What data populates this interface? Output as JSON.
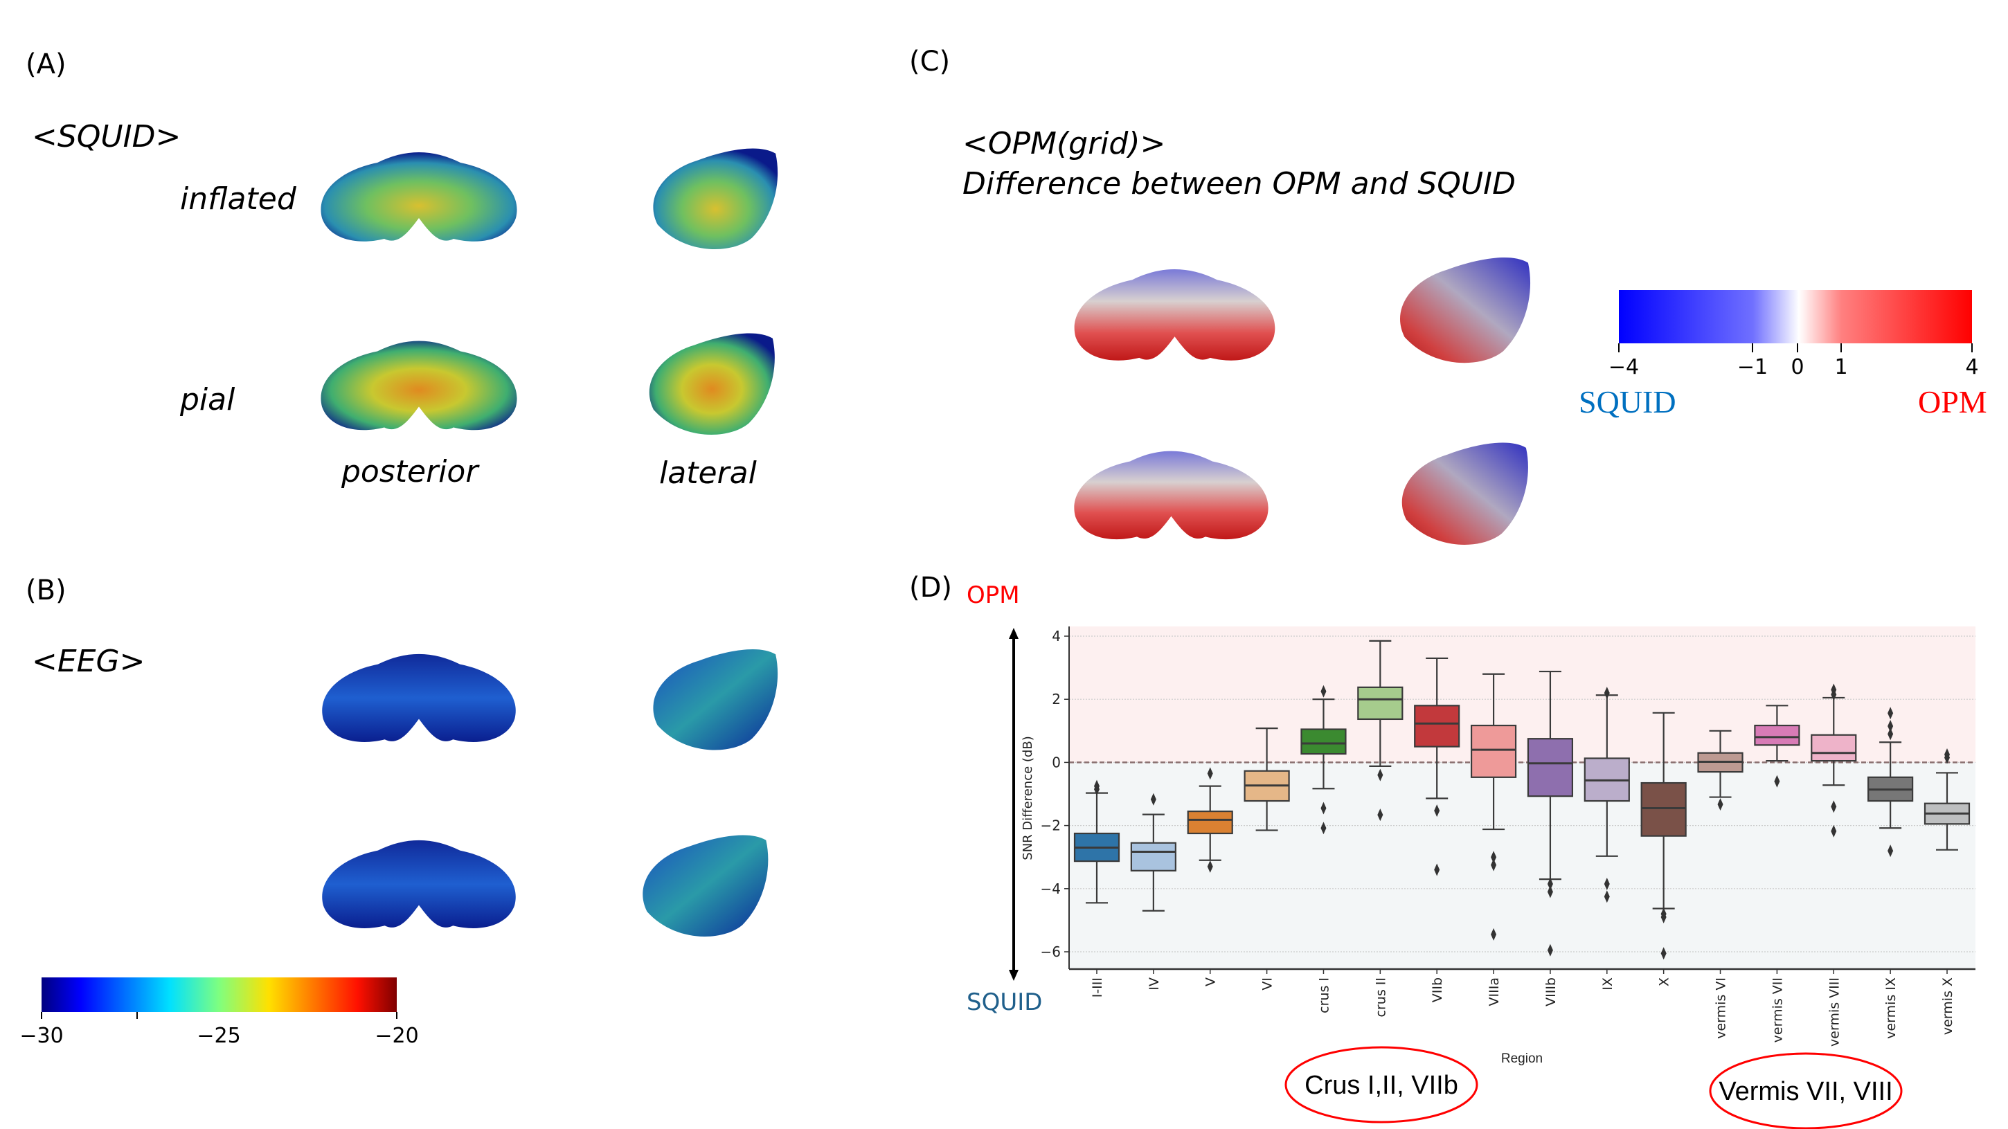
{
  "panels": {
    "a": "(A)",
    "b": "(B)",
    "c": "(C)",
    "d": "(D)"
  },
  "panel_a": {
    "title": "<SQUID>",
    "row1": "inflated",
    "row2": "pial",
    "col1": "posterior",
    "col2": "lateral"
  },
  "panel_b": {
    "title": "<EEG>"
  },
  "jet_colorbar": {
    "ticks": [
      "−30",
      "−25",
      "−20"
    ],
    "tick_values": [
      -30,
      -25,
      -20
    ]
  },
  "panel_c": {
    "title": "<OPM(grid)>",
    "subtitle": "Difference between OPM and SQUID"
  },
  "diff_colorbar": {
    "ticks": [
      "−4",
      "−1",
      "0",
      "1",
      "4"
    ],
    "left_label": "SQUID",
    "right_label": "OPM",
    "left_color": "#0070c0",
    "right_color": "#ff0000"
  },
  "panel_d": {
    "top_label": "OPM",
    "bottom_label": "SQUID",
    "top_color": "#ff0000",
    "bottom_color": "#1f5f8b"
  },
  "annotations": {
    "ellipse1": "Crus I,II, VIIb",
    "ellipse2": "Vermis VII, VIII"
  },
  "chart_data": {
    "type": "box",
    "xlabel": "Region",
    "ylabel": "SNR Difference (dB)",
    "ylim": [
      -6.6,
      4.3
    ],
    "yticks": [
      4,
      2,
      0,
      -2,
      -4,
      -6
    ],
    "ytick_labels": [
      "4",
      "2",
      "0",
      "−2",
      "−4",
      "−6"
    ],
    "reference_line": 0,
    "background": {
      "positive": "#fdf0f0",
      "negative": "#f3f6f7"
    },
    "categories": [
      "I-III",
      "IV",
      "V",
      "VI",
      "crus I",
      "crus II",
      "VIIb",
      "VIIIa",
      "VIIIb",
      "IX",
      "X",
      "vermis VI",
      "vermis VII",
      "vermis VIII",
      "vermis IX",
      "vermis X"
    ],
    "colors": [
      "#2e74a8",
      "#a9c3df",
      "#da8132",
      "#e5b788",
      "#3b8a30",
      "#a6cc8d",
      "#c2393c",
      "#ee9a99",
      "#8e6fae",
      "#bbaecb",
      "#7a5148",
      "#bd9a92",
      "#d87bb6",
      "#eeb3c9",
      "#777777",
      "#bdbfc0"
    ],
    "boxes": [
      {
        "whislo": -4.45,
        "q1": -3.13,
        "med": -2.7,
        "q3": -2.25,
        "whishi": -0.97,
        "fliers": [
          -0.75,
          -0.85
        ]
      },
      {
        "whislo": -4.7,
        "q1": -3.43,
        "med": -2.83,
        "q3": -2.55,
        "whishi": -1.65,
        "fliers": [
          -1.17
        ]
      },
      {
        "whislo": -3.1,
        "q1": -2.25,
        "med": -1.82,
        "q3": -1.55,
        "whishi": -0.75,
        "fliers": [
          -0.35,
          -3.3
        ]
      },
      {
        "whislo": -2.15,
        "q1": -1.22,
        "med": -0.73,
        "q3": -0.27,
        "whishi": 1.08,
        "fliers": []
      },
      {
        "whislo": -0.83,
        "q1": 0.27,
        "med": 0.6,
        "q3": 1.05,
        "whishi": 2.0,
        "fliers": [
          2.25,
          -1.45,
          -2.08
        ]
      },
      {
        "whislo": -0.12,
        "q1": 1.37,
        "med": 2.0,
        "q3": 2.38,
        "whishi": 3.85,
        "fliers": [
          -0.4,
          -1.66
        ]
      },
      {
        "whislo": -1.14,
        "q1": 0.5,
        "med": 1.23,
        "q3": 1.8,
        "whishi": 3.3,
        "fliers": [
          -1.53,
          -3.4
        ]
      },
      {
        "whislo": -2.12,
        "q1": -0.47,
        "med": 0.4,
        "q3": 1.17,
        "whishi": 2.8,
        "fliers": [
          -3.0,
          -3.25,
          -5.45
        ]
      },
      {
        "whislo": -3.7,
        "q1": -1.07,
        "med": -0.03,
        "q3": 0.75,
        "whishi": 2.88,
        "fliers": [
          -3.85,
          -4.1,
          -5.95
        ]
      },
      {
        "whislo": -2.97,
        "q1": -1.22,
        "med": -0.57,
        "q3": 0.13,
        "whishi": 2.13,
        "fliers": [
          2.2,
          -3.85,
          -4.25
        ]
      },
      {
        "whislo": -4.63,
        "q1": -2.33,
        "med": -1.45,
        "q3": -0.65,
        "whishi": 1.57,
        "fliers": [
          -4.8,
          -4.9,
          -6.05
        ]
      },
      {
        "whislo": -1.1,
        "q1": -0.3,
        "med": 0.02,
        "q3": 0.3,
        "whishi": 1.0,
        "fliers": [
          -1.33
        ]
      },
      {
        "whislo": 0.05,
        "q1": 0.55,
        "med": 0.8,
        "q3": 1.17,
        "whishi": 1.8,
        "fliers": [
          -0.6
        ]
      },
      {
        "whislo": -0.72,
        "q1": 0.05,
        "med": 0.3,
        "q3": 0.87,
        "whishi": 2.05,
        "fliers": [
          2.3,
          2.15,
          -1.4,
          -2.18
        ]
      },
      {
        "whislo": -2.08,
        "q1": -1.22,
        "med": -0.86,
        "q3": -0.47,
        "whishi": 0.64,
        "fliers": [
          1.56,
          1.15,
          0.9,
          -2.8
        ]
      },
      {
        "whislo": -2.77,
        "q1": -1.95,
        "med": -1.62,
        "q3": -1.3,
        "whishi": -0.33,
        "fliers": [
          0.25,
          0.15
        ]
      }
    ]
  }
}
